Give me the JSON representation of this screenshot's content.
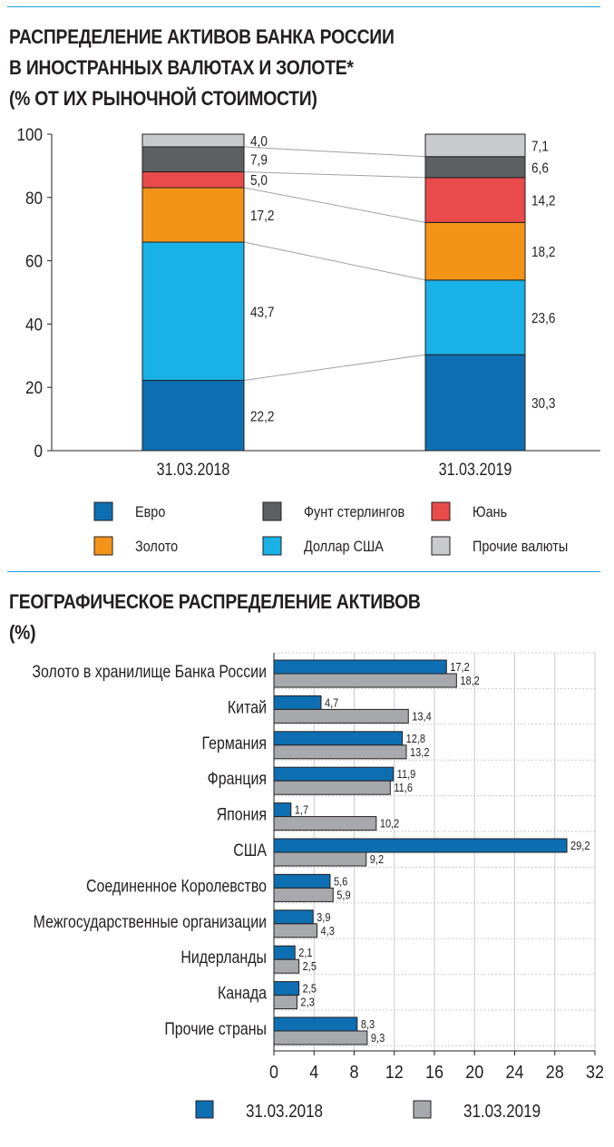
{
  "chart1": {
    "title_lines": [
      "РАСПРЕДЕЛЕНИЕ АКТИВОВ БАНКА РОССИИ",
      "В ИНОСТРАННЫХ ВАЛЮТАХ И ЗОЛОТЕ*",
      "(% ОТ ИХ РЫНОЧНОЙ СТОИМОСТИ)"
    ]
  },
  "chart2": {
    "title_lines": [
      "ГЕОГРАФИЧЕСКОЕ РАСПРЕДЕЛЕНИЕ АКТИВОВ",
      "(%)"
    ]
  },
  "chart_data": [
    {
      "type": "bar",
      "stacked": true,
      "categories": [
        "31.03.2018",
        "31.03.2019"
      ],
      "series": [
        {
          "name": "Евро",
          "values": [
            22.2,
            30.3
          ],
          "labels": [
            "22,2",
            "30,3"
          ],
          "color": "#0d6fb2"
        },
        {
          "name": "Доллар США",
          "values": [
            43.7,
            23.6
          ],
          "labels": [
            "43,7",
            "23,6"
          ],
          "color": "#19b1e6"
        },
        {
          "name": "Золото",
          "values": [
            17.2,
            18.2
          ],
          "labels": [
            "17,2",
            "18,2"
          ],
          "color": "#f39419"
        },
        {
          "name": "Юань",
          "values": [
            5.0,
            14.2
          ],
          "labels": [
            "5,0",
            "14,2"
          ],
          "color": "#e94b4b"
        },
        {
          "name": "Фунт стерлингов",
          "values": [
            7.9,
            6.6
          ],
          "labels": [
            "7,9",
            "6,6"
          ],
          "color": "#5d5f61"
        },
        {
          "name": "Прочие валюты",
          "values": [
            4.0,
            7.1
          ],
          "labels": [
            "4,0",
            "7,1"
          ],
          "color": "#c9cacb"
        }
      ],
      "ylim": [
        0,
        100
      ],
      "yticks": [
        0,
        20,
        40,
        60,
        80,
        100
      ],
      "legend_order": [
        "Евро",
        "Золото",
        "Фунт стерлингов",
        "Доллар США",
        "Юань",
        "Прочие валюты"
      ],
      "legend_position": "bottom",
      "grid": false
    },
    {
      "type": "bar",
      "orientation": "horizontal",
      "categories": [
        "Золото в хранилище Банка России",
        "Китай",
        "Германия",
        "Франция",
        "Япония",
        "США",
        "Соединенное Королевство",
        "Межгосударственные организации",
        "Нидерланды",
        "Канада",
        "Прочие страны"
      ],
      "series": [
        {
          "name": "31.03.2018",
          "color": "#0d6fb2",
          "values": [
            17.2,
            4.7,
            12.8,
            11.9,
            1.7,
            29.2,
            5.6,
            3.9,
            2.1,
            2.5,
            8.3
          ],
          "labels": [
            "17,2",
            "4,7",
            "12,8",
            "11,9",
            "1,7",
            "29,2",
            "5,6",
            "3,9",
            "2,1",
            "2,5",
            "8,3"
          ]
        },
        {
          "name": "31.03.2019",
          "color": "#a7a9ac",
          "values": [
            18.2,
            13.4,
            13.2,
            11.6,
            10.2,
            9.2,
            5.9,
            4.3,
            2.5,
            2.3,
            9.3
          ],
          "labels": [
            "18,2",
            "13,4",
            "13,2",
            "11,6",
            "10,2",
            "9,2",
            "5,9",
            "4,3",
            "2,5",
            "2,3",
            "9,3"
          ]
        }
      ],
      "xlim": [
        0,
        32
      ],
      "xticks": [
        0,
        4,
        8,
        12,
        16,
        20,
        24,
        28,
        32
      ],
      "grid": true,
      "legend_position": "bottom"
    }
  ]
}
